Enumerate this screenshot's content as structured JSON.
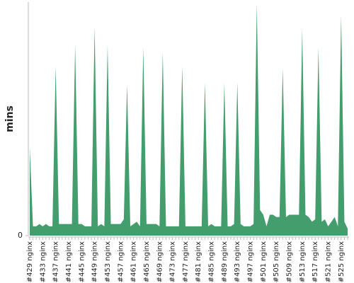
{
  "chart_data": {
    "type": "area",
    "y_label": "mins",
    "color": "#449d6d",
    "categories": [
      "#429 nginx",
      null,
      null,
      null,
      "#433 nginx",
      null,
      null,
      null,
      "#437 nginx",
      null,
      null,
      null,
      "#441 nginx",
      null,
      null,
      null,
      "#445 nginx",
      null,
      null,
      null,
      "#449 nginx",
      null,
      null,
      null,
      "#453 nginx",
      null,
      null,
      null,
      "#457 nginx",
      null,
      null,
      null,
      "#461 nginx",
      null,
      null,
      null,
      "#465 nginx",
      null,
      null,
      null,
      "#469 nginx",
      null,
      null,
      null,
      "#473 nginx",
      null,
      null,
      null,
      "#477 nginx",
      null,
      null,
      null,
      "#481 nginx",
      null,
      null,
      null,
      "#485 nginx",
      null,
      null,
      null,
      "#489 nginx",
      null,
      null,
      null,
      "#493 nginx",
      null,
      null,
      null,
      "#497 nginx",
      null,
      null,
      null,
      "#501 nginx",
      null,
      null,
      null,
      "#505 nginx",
      null,
      null,
      null,
      "#509 nginx",
      null,
      null,
      null,
      "#513 nginx",
      null,
      null,
      null,
      "#517 nginx",
      null,
      null,
      null,
      "#521 nginx",
      null,
      null,
      null,
      "#525 nginx",
      null,
      null
    ],
    "values": [
      38,
      4,
      4,
      5,
      4,
      5,
      4,
      4,
      73,
      5,
      5,
      5,
      5,
      5,
      82,
      5,
      5,
      4,
      4,
      4,
      90,
      4,
      5,
      4,
      82,
      5,
      5,
      5,
      5,
      7,
      65,
      4,
      5,
      6,
      4,
      81,
      5,
      5,
      5,
      5,
      4,
      79,
      4,
      4,
      4,
      4,
      4,
      73,
      4,
      4,
      4,
      4,
      4,
      4,
      66,
      4,
      5,
      4,
      4,
      4,
      66,
      4,
      4,
      5,
      66,
      5,
      4,
      4,
      4,
      5,
      100,
      11,
      9,
      4,
      9,
      9,
      8,
      8,
      72,
      8,
      9,
      9,
      9,
      9,
      89,
      9,
      8,
      6,
      7,
      81,
      6,
      7,
      4,
      6,
      8,
      4,
      95,
      6,
      3
    ],
    "ylim": [
      0,
      100
    ],
    "yticks": [
      0
    ]
  }
}
